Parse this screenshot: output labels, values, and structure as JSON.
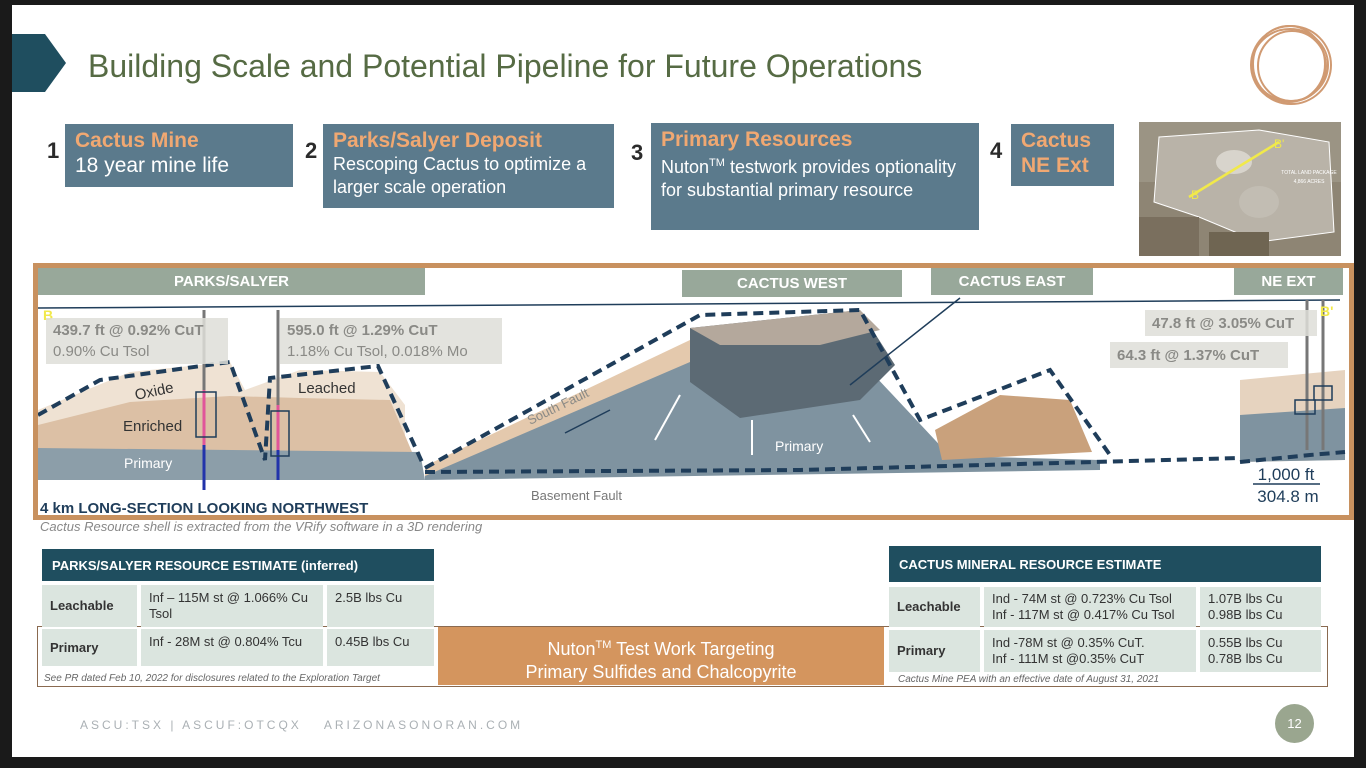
{
  "header": {
    "title": "Building Scale and Potential Pipeline for Future Operations"
  },
  "steps": [
    {
      "number": "1",
      "title": "Cactus Mine",
      "text": "18 year mine life"
    },
    {
      "number": "2",
      "title": "Parks/Salyer Deposit",
      "text": "Rescoping Cactus to optimize a larger scale operation"
    },
    {
      "number": "3",
      "title": "Primary Resources",
      "text_before": "Nuton",
      "superscript": "TM",
      "text_after": " testwork provides optionality for substantial primary resource"
    },
    {
      "number": "4",
      "title": "Cactus NE Ext"
    }
  ],
  "map": {
    "labels": [
      "B'",
      "B",
      "TOTAL LAND PACKAGE",
      "4,866 ACRES"
    ]
  },
  "section": {
    "headers": [
      "PARKS/SALYER",
      "CACTUS WEST",
      "CACTUS EAST",
      "NE EXT"
    ],
    "markers": [
      "B",
      "B'"
    ],
    "intercepts": [
      {
        "line1": "439.7 ft @ 0.92% CuT",
        "line2": "0.90% Cu Tsol"
      },
      {
        "line1": "595.0 ft @ 1.29% CuT",
        "line2": "1.18% Cu Tsol, 0.018% Mo"
      },
      {
        "line1": "47.8 ft @ 3.05% CuT"
      },
      {
        "line1": "64.3 ft @ 1.37% CuT"
      }
    ],
    "zones": [
      "Oxide",
      "Enriched",
      "Primary",
      "Leached",
      "South Fault",
      "Primary",
      "Basement Fault"
    ],
    "scale": [
      "1,000 ft",
      "304.8 m"
    ],
    "caption": "4 km LONG-SECTION LOOKING NORTHWEST",
    "note": "Cactus Resource shell is extracted from the VRify software in a 3D rendering"
  },
  "parks_table": {
    "title": "PARKS/SALYER RESOURCE ESTIMATE (inferred)",
    "rows": [
      [
        "Leachable",
        "Inf – 115M st @ 1.066% Cu Tsol",
        "2.5B lbs Cu"
      ],
      [
        "Primary",
        "Inf - 28M st @ 0.804% Tcu",
        "0.45B lbs Cu"
      ]
    ],
    "note": "See PR dated Feb 10, 2022 for disclosures related to the Exploration Target"
  },
  "callout": {
    "text_before": "Nuton",
    "superscript": "TM",
    "text_after": " Test Work Targeting",
    "line2": "Primary Sulfides and Chalcopyrite"
  },
  "cactus_table": {
    "title": "CACTUS MINERAL RESOURCE ESTIMATE",
    "rows": [
      [
        "Leachable",
        [
          "Ind - 74M st @ 0.723% Cu Tsol",
          "Inf - 117M st @ 0.417% Cu Tsol"
        ],
        [
          "1.07B lbs Cu",
          "0.98B lbs Cu"
        ]
      ],
      [
        "Primary",
        [
          "Ind -78M st @ 0.35% CuT.",
          "Inf - 111M st @0.35% CuT"
        ],
        [
          "0.55B lbs Cu",
          "0.78B lbs Cu"
        ]
      ]
    ],
    "note": "Cactus Mine PEA with an effective date of August 31, 2021"
  },
  "footer": {
    "tickers": "ASCU:TSX | ASCUF:OTCQX",
    "website": "ARIZONASONORAN.COM",
    "page": "12"
  }
}
